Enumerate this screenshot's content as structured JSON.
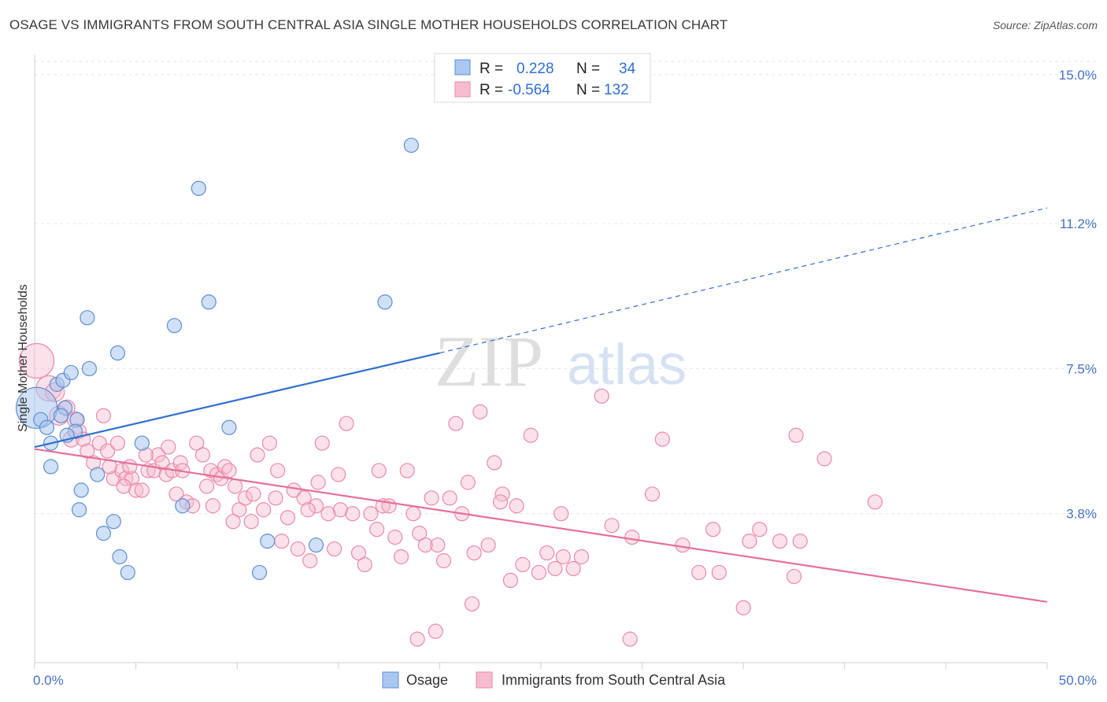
{
  "title": "OSAGE VS IMMIGRANTS FROM SOUTH CENTRAL ASIA SINGLE MOTHER HOUSEHOLDS CORRELATION CHART",
  "source": "Source: ZipAtlas.com",
  "watermark": {
    "zip": "ZIP",
    "atlas": "atlas"
  },
  "colors": {
    "osage_fill": "#a9c7ef",
    "osage_stroke": "#5d8fd4",
    "osage_line": "#2f6fd0",
    "imm_fill": "#f7bcd0",
    "imm_stroke": "#e98aaa",
    "imm_line": "#e5709a",
    "grid": "#e6e6e6",
    "tick_text": "#4472c4"
  },
  "legend_top": {
    "rows": [
      {
        "r_label": "R =",
        "r_value": "0.228",
        "n_label": "N =",
        "n_value": "34"
      },
      {
        "r_label": "R =",
        "r_value": "-0.564",
        "n_label": "N =",
        "n_value": "132"
      }
    ]
  },
  "chart_data": {
    "type": "scatter",
    "title": "OSAGE VS IMMIGRANTS FROM SOUTH CENTRAL ASIA SINGLE MOTHER HOUSEHOLDS CORRELATION CHART",
    "xlabel": "",
    "ylabel": "Single Mother Households",
    "xlim": [
      0,
      50
    ],
    "ylim": [
      0,
      15.5
    ],
    "x_tick_labels": [
      "0.0%",
      "50.0%"
    ],
    "y_ticks": [
      3.8,
      7.5,
      11.2,
      15.0
    ],
    "y_tick_labels": [
      "3.8%",
      "7.5%",
      "11.2%",
      "15.0%"
    ],
    "grid": true,
    "legend": "top-center",
    "series": [
      {
        "name": "Osage",
        "r": 0.228,
        "n": 34,
        "trend": {
          "x": [
            0,
            20
          ],
          "y": [
            5.5,
            7.9
          ],
          "dashed_extension": {
            "x": [
              20,
              50
            ],
            "y": [
              7.9,
              11.6
            ]
          }
        },
        "points": [
          [
            0.1,
            6.5,
            26
          ],
          [
            0.3,
            6.2,
            9
          ],
          [
            0.6,
            6.0,
            9
          ],
          [
            0.8,
            5.6,
            9
          ],
          [
            0.8,
            5.0,
            9
          ],
          [
            1.1,
            7.1,
            9
          ],
          [
            1.4,
            7.2,
            9
          ],
          [
            1.8,
            7.4,
            9
          ],
          [
            2.1,
            6.2,
            9
          ],
          [
            2.0,
            5.9,
            9
          ],
          [
            1.6,
            5.8,
            9
          ],
          [
            1.5,
            6.5,
            9
          ],
          [
            2.6,
            8.8,
            9
          ],
          [
            2.7,
            7.5,
            9
          ],
          [
            3.1,
            4.8,
            9
          ],
          [
            2.3,
            4.4,
            9
          ],
          [
            2.2,
            3.9,
            9
          ],
          [
            3.4,
            3.3,
            9
          ],
          [
            3.9,
            3.6,
            9
          ],
          [
            4.2,
            2.7,
            9
          ],
          [
            4.6,
            2.3,
            9
          ],
          [
            4.1,
            7.9,
            9
          ],
          [
            5.3,
            5.6,
            9
          ],
          [
            6.9,
            8.6,
            9
          ],
          [
            7.3,
            4.0,
            9
          ],
          [
            8.1,
            12.1,
            9
          ],
          [
            8.6,
            9.2,
            9
          ],
          [
            9.6,
            6.0,
            9
          ],
          [
            11.5,
            3.1,
            9
          ],
          [
            11.1,
            2.3,
            9
          ],
          [
            13.9,
            3.0,
            9
          ],
          [
            17.3,
            9.2,
            9
          ],
          [
            18.6,
            13.2,
            9
          ],
          [
            1.3,
            6.3,
            9
          ]
        ]
      },
      {
        "name": "Immigrants from South Central Asia",
        "r": -0.564,
        "n": 132,
        "trend": {
          "x": [
            0,
            50
          ],
          "y": [
            5.45,
            1.55
          ]
        },
        "points": [
          [
            0.1,
            7.7,
            22
          ],
          [
            0.7,
            7.0,
            16
          ],
          [
            1.0,
            6.9,
            12
          ],
          [
            1.2,
            6.3,
            12
          ],
          [
            1.6,
            6.5,
            10
          ],
          [
            1.8,
            5.7,
            10
          ],
          [
            2.0,
            6.2,
            10
          ],
          [
            2.2,
            5.9,
            9
          ],
          [
            2.4,
            5.7,
            9
          ],
          [
            2.6,
            5.4,
            9
          ],
          [
            2.9,
            5.1,
            9
          ],
          [
            3.2,
            5.6,
            9
          ],
          [
            3.4,
            6.3,
            9
          ],
          [
            3.6,
            5.4,
            9
          ],
          [
            3.9,
            4.7,
            9
          ],
          [
            4.1,
            5.6,
            9
          ],
          [
            4.3,
            4.9,
            9
          ],
          [
            4.5,
            4.7,
            9
          ],
          [
            4.8,
            4.7,
            9
          ],
          [
            5.0,
            4.4,
            9
          ],
          [
            5.3,
            4.4,
            9
          ],
          [
            5.6,
            4.9,
            9
          ],
          [
            5.9,
            4.9,
            9
          ],
          [
            6.1,
            5.3,
            9
          ],
          [
            6.3,
            5.1,
            9
          ],
          [
            6.5,
            4.8,
            9
          ],
          [
            6.8,
            4.9,
            9
          ],
          [
            7.0,
            4.3,
            9
          ],
          [
            7.2,
            5.1,
            9
          ],
          [
            7.5,
            4.1,
            9
          ],
          [
            7.8,
            4.0,
            9
          ],
          [
            8.0,
            5.6,
            9
          ],
          [
            8.3,
            5.3,
            9
          ],
          [
            8.5,
            4.5,
            9
          ],
          [
            8.7,
            4.9,
            9
          ],
          [
            9.0,
            4.8,
            9
          ],
          [
            9.2,
            4.7,
            9
          ],
          [
            9.4,
            5.0,
            9
          ],
          [
            9.6,
            4.9,
            9
          ],
          [
            9.9,
            4.5,
            9
          ],
          [
            10.1,
            3.9,
            9
          ],
          [
            10.4,
            4.2,
            9
          ],
          [
            10.7,
            3.6,
            9
          ],
          [
            11.0,
            5.3,
            9
          ],
          [
            11.3,
            3.9,
            9
          ],
          [
            11.6,
            5.6,
            9
          ],
          [
            11.9,
            4.2,
            9
          ],
          [
            12.2,
            3.1,
            9
          ],
          [
            12.5,
            3.7,
            9
          ],
          [
            12.8,
            4.4,
            9
          ],
          [
            13.0,
            2.9,
            9
          ],
          [
            13.3,
            4.2,
            9
          ],
          [
            13.6,
            2.6,
            9
          ],
          [
            13.9,
            4.0,
            9
          ],
          [
            14.2,
            5.6,
            9
          ],
          [
            14.5,
            3.8,
            9
          ],
          [
            14.8,
            2.9,
            9
          ],
          [
            15.1,
            3.9,
            9
          ],
          [
            15.4,
            6.1,
            9
          ],
          [
            15.7,
            3.8,
            9
          ],
          [
            16.0,
            2.8,
            9
          ],
          [
            16.3,
            2.5,
            9
          ],
          [
            16.6,
            3.8,
            9
          ],
          [
            16.9,
            3.4,
            9
          ],
          [
            17.2,
            4.0,
            9
          ],
          [
            17.5,
            4.0,
            9
          ],
          [
            17.8,
            3.2,
            9
          ],
          [
            18.1,
            2.7,
            9
          ],
          [
            18.4,
            4.9,
            9
          ],
          [
            18.7,
            3.8,
            9
          ],
          [
            19.0,
            3.3,
            9
          ],
          [
            19.3,
            3.0,
            9
          ],
          [
            19.6,
            4.2,
            9
          ],
          [
            19.9,
            3.0,
            9
          ],
          [
            20.2,
            2.6,
            9
          ],
          [
            20.5,
            4.2,
            9
          ],
          [
            20.8,
            6.1,
            9
          ],
          [
            21.1,
            3.8,
            9
          ],
          [
            21.4,
            4.6,
            9
          ],
          [
            21.7,
            2.8,
            9
          ],
          [
            22.0,
            6.4,
            9
          ],
          [
            22.4,
            3.0,
            9
          ],
          [
            22.7,
            5.1,
            9
          ],
          [
            23.1,
            4.3,
            9
          ],
          [
            23.5,
            2.1,
            9
          ],
          [
            23.8,
            4.0,
            9
          ],
          [
            24.1,
            2.5,
            9
          ],
          [
            24.5,
            5.8,
            9
          ],
          [
            24.9,
            2.3,
            9
          ],
          [
            25.3,
            2.8,
            9
          ],
          [
            25.7,
            2.4,
            9
          ],
          [
            26.1,
            2.7,
            9
          ],
          [
            26.6,
            2.4,
            9
          ],
          [
            27.0,
            2.7,
            9
          ],
          [
            28.0,
            6.8,
            9
          ],
          [
            28.5,
            3.5,
            9
          ],
          [
            29.5,
            3.2,
            9
          ],
          [
            30.5,
            4.3,
            9
          ],
          [
            31.0,
            5.7,
            9
          ],
          [
            32.0,
            3.0,
            9
          ],
          [
            32.8,
            2.3,
            9
          ],
          [
            33.5,
            3.4,
            9
          ],
          [
            33.8,
            2.3,
            9
          ],
          [
            35.0,
            1.4,
            9
          ],
          [
            35.3,
            3.1,
            9
          ],
          [
            35.8,
            3.4,
            9
          ],
          [
            36.8,
            3.1,
            9
          ],
          [
            37.5,
            2.2,
            9
          ],
          [
            37.6,
            5.8,
            9
          ],
          [
            37.8,
            3.1,
            9
          ],
          [
            39.0,
            5.2,
            9
          ],
          [
            41.5,
            4.1,
            9
          ],
          [
            3.7,
            5.0,
            9
          ],
          [
            4.4,
            4.5,
            9
          ],
          [
            4.7,
            5.0,
            9
          ],
          [
            5.5,
            5.3,
            9
          ],
          [
            6.6,
            5.5,
            9
          ],
          [
            7.3,
            4.9,
            9
          ],
          [
            8.8,
            4.0,
            9
          ],
          [
            9.8,
            3.6,
            9
          ],
          [
            12.0,
            4.9,
            9
          ],
          [
            13.5,
            3.9,
            9
          ],
          [
            15.0,
            4.8,
            9
          ],
          [
            18.9,
            0.6,
            9
          ],
          [
            19.8,
            0.8,
            9
          ],
          [
            21.6,
            1.5,
            9
          ],
          [
            29.4,
            0.6,
            9
          ],
          [
            23.0,
            4.1,
            9
          ],
          [
            26.0,
            3.8,
            9
          ],
          [
            17.0,
            4.9,
            9
          ],
          [
            14.0,
            4.6,
            9
          ],
          [
            10.8,
            4.3,
            9
          ]
        ]
      }
    ]
  },
  "bottom_legend": {
    "items": [
      "Osage",
      "Immigrants from South Central Asia"
    ]
  }
}
